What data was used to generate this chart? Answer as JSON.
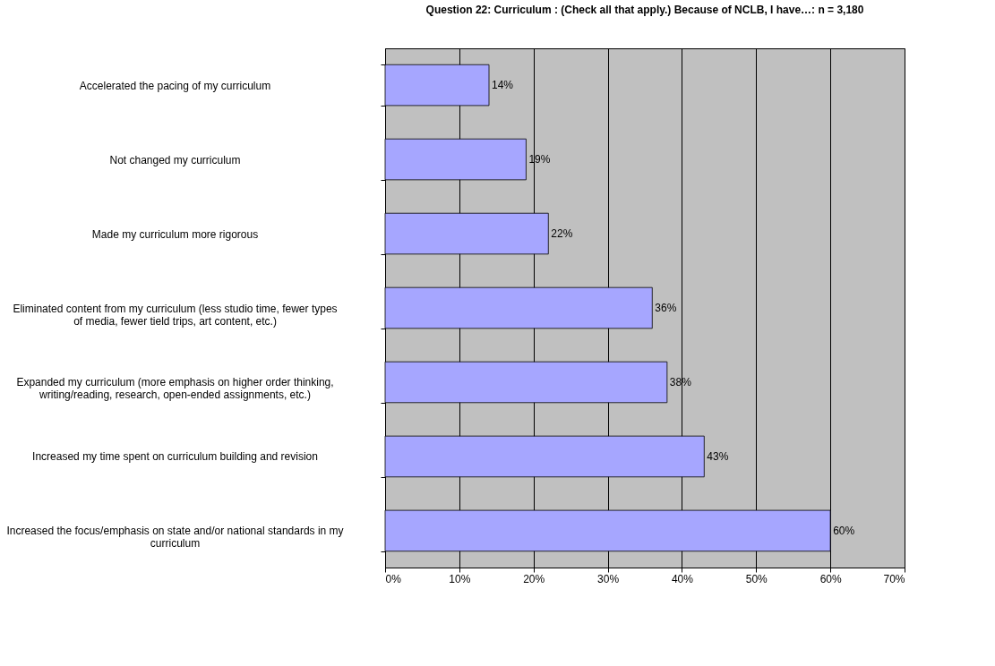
{
  "chart_data": {
    "type": "bar",
    "orientation": "horizontal",
    "title": "Question 22:   Curriculum  : (Check all that apply.) Because of NCLB, I have…: n = 3,180",
    "categories": [
      "Accelerated the pacing of my curriculum",
      "Not changed my curriculum",
      "Made my curriculum more rigorous",
      "Eliminated content from my curriculum (less studio time, fewer types of media, fewer tield trips, art content, etc.)",
      "Expanded my curriculum (more emphasis on higher order thinking, writing/reading, research, open-ended assignments, etc.)",
      "Increased my time spent on curriculum building and revision",
      "Increased  the focus/emphasis on state and/or national standards in my curriculum"
    ],
    "values": [
      14,
      19,
      22,
      36,
      38,
      43,
      60
    ],
    "value_labels": [
      "14%",
      "19%",
      "22%",
      "36%",
      "38%",
      "43%",
      "60%"
    ],
    "color": "#a6a6ff",
    "xlim": [
      0,
      70
    ],
    "xticks": [
      {
        "value": 0,
        "label": "0%"
      },
      {
        "value": 10,
        "label": "10%"
      },
      {
        "value": 20,
        "label": "20%"
      },
      {
        "value": 30,
        "label": "30%"
      },
      {
        "value": 40,
        "label": "40%"
      },
      {
        "value": 50,
        "label": "50%"
      },
      {
        "value": 60,
        "label": "60%"
      },
      {
        "value": 70,
        "label": "70%"
      }
    ],
    "grid": "x"
  }
}
